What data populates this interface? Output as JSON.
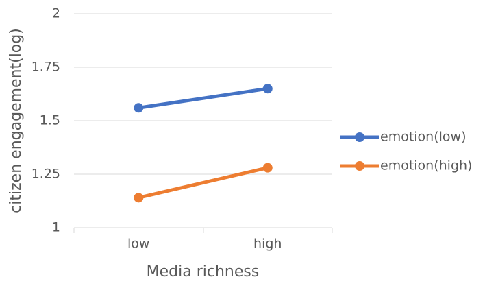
{
  "chart_data": {
    "type": "line",
    "x_label": "Media richness",
    "y_label": "citizen engagement(log)",
    "categories": [
      "low",
      "high"
    ],
    "series": [
      {
        "name": "emotion(low)",
        "color": "#4472c4",
        "values": [
          1.56,
          1.65
        ]
      },
      {
        "name": "emotion(high)",
        "color": "#ed7d31",
        "values": [
          1.14,
          1.28
        ]
      }
    ],
    "ylim": [
      1,
      2
    ],
    "yticks": [
      1,
      1.25,
      1.5,
      1.75,
      2
    ],
    "grid": true,
    "legend": "right"
  }
}
